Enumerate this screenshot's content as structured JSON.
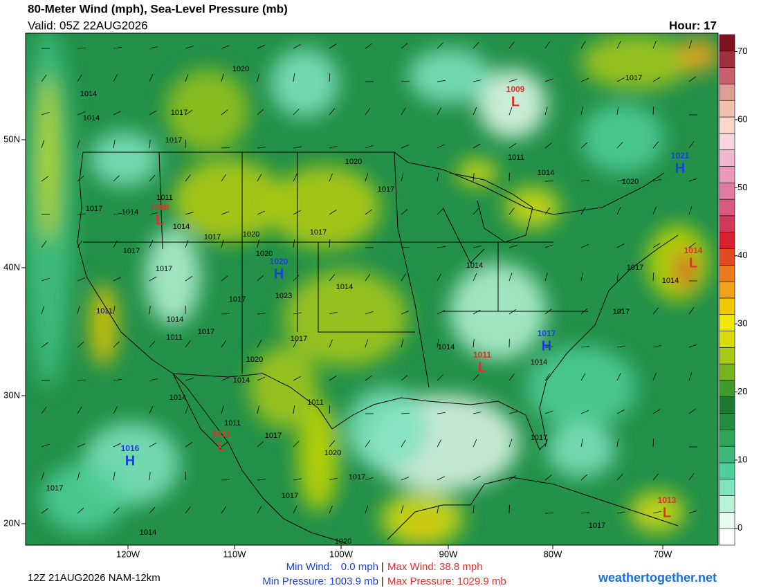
{
  "header": {
    "title": "80-Meter Wind (mph), Sea-Level Pressure (mb)",
    "valid": "Valid: 05Z 22AUG2026",
    "hour": "Hour: 17"
  },
  "map": {
    "lat_labels": [
      "50N",
      "40N",
      "30N",
      "20N"
    ],
    "lon_labels": [
      "120W",
      "110W",
      "100W",
      "90W",
      "80W",
      "70W"
    ],
    "center_colors": {
      "H": "#1a3fe0",
      "L": "#e0302a"
    },
    "centers": [
      {
        "type": "L",
        "pressure": 1009
      },
      {
        "type": "H",
        "pressure": 1021
      },
      {
        "type": "L",
        "pressure": 1008
      },
      {
        "type": "H",
        "pressure": 1020
      },
      {
        "type": "L",
        "pressure": 1014
      },
      {
        "type": "H",
        "pressure": 1017
      },
      {
        "type": "L",
        "pressure": 1011
      },
      {
        "type": "L",
        "pressure": 1011
      },
      {
        "type": "H",
        "pressure": 1016
      },
      {
        "type": "L",
        "pressure": 1013
      }
    ],
    "isobar_labels": [
      1020,
      1014,
      1014,
      1017,
      1017,
      1020,
      1011,
      1014,
      1017,
      1020,
      1017,
      1011,
      1017,
      1014,
      1014,
      1017,
      1020,
      1017,
      1017,
      1020,
      1017,
      1014,
      1017,
      1014,
      1014,
      1023,
      1017,
      1017,
      1014,
      1011,
      1017,
      1011,
      1017,
      1014,
      1014,
      1020,
      1014,
      1014,
      1011,
      1011,
      1017,
      1020,
      1017,
      1017,
      1017,
      1017,
      1014,
      1017,
      1020
    ]
  },
  "colorbar": {
    "ticks": [
      0,
      10,
      20,
      30,
      40,
      50,
      60,
      70
    ],
    "lim": [
      -2.5,
      72.5
    ],
    "colors": [
      "#ffffff",
      "#e6fbef",
      "#b6f2d6",
      "#7fe3bf",
      "#4fcf9b",
      "#3cb878",
      "#2ea35c",
      "#228c45",
      "#1d7a36",
      "#3f9a2a",
      "#78b41e",
      "#a8c814",
      "#d6dc0a",
      "#f0e800",
      "#f0c800",
      "#f0a218",
      "#ea7a1c",
      "#e04a1e",
      "#d82030",
      "#d03a5a",
      "#d85a80",
      "#e07aa0",
      "#e89ab8",
      "#f0b8d0",
      "#f6d4e0",
      "#f8d8c8",
      "#f0c0b0",
      "#e09c96",
      "#c86070",
      "#a03040",
      "#801020"
    ]
  },
  "footer": {
    "run": "12Z 21AUG2026 NAM-12km",
    "min_wind": "Min Wind:   0.0 mph",
    "max_wind": "Max Wind: 38.8 mph",
    "min_pressure": "Min Pressure: 1003.9 mb",
    "max_pressure": "Max Pressure: 1029.9 mb",
    "separator": "|",
    "site": "weathertogether.net"
  }
}
